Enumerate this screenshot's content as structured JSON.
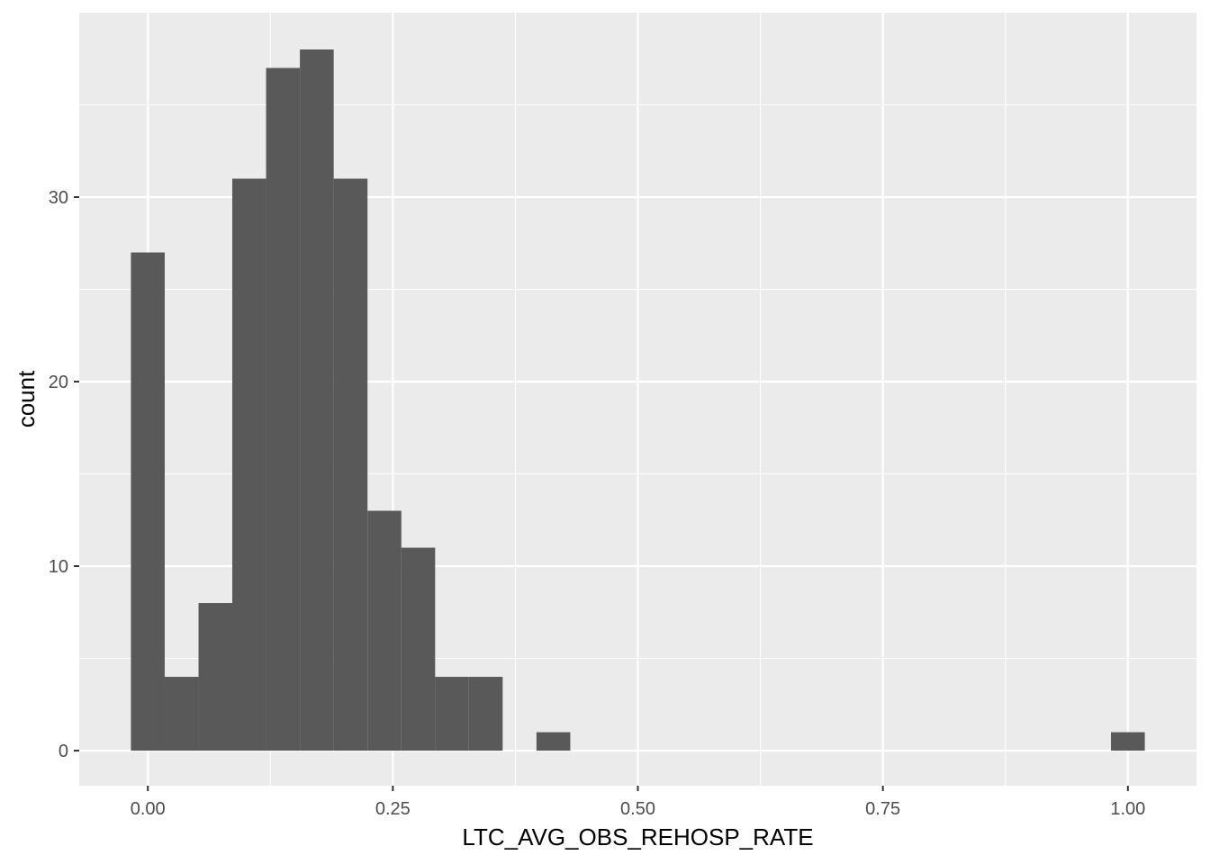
{
  "chart_data": {
    "type": "bar",
    "subtype": "histogram",
    "title": "",
    "xlabel": "LTC_AVG_OBS_REHOSP_RATE",
    "ylabel": "count",
    "xlim": [
      -0.07,
      1.07
    ],
    "ylim": [
      -1.9,
      40
    ],
    "x_ticks": [
      0.0,
      0.25,
      0.5,
      0.75,
      1.0
    ],
    "x_tick_labels": [
      "0.00",
      "0.25",
      "0.50",
      "0.75",
      "1.00"
    ],
    "y_ticks": [
      0,
      10,
      20,
      30
    ],
    "y_tick_labels": [
      "0",
      "10",
      "20",
      "30"
    ],
    "bin_width": 0.0345,
    "bins": [
      {
        "x": 0.0,
        "count": 27
      },
      {
        "x": 0.0345,
        "count": 4
      },
      {
        "x": 0.069,
        "count": 8
      },
      {
        "x": 0.1034,
        "count": 31
      },
      {
        "x": 0.1379,
        "count": 37
      },
      {
        "x": 0.1724,
        "count": 38
      },
      {
        "x": 0.2069,
        "count": 31
      },
      {
        "x": 0.2414,
        "count": 13
      },
      {
        "x": 0.2759,
        "count": 11
      },
      {
        "x": 0.3103,
        "count": 4
      },
      {
        "x": 0.3448,
        "count": 4
      },
      {
        "x": 0.4138,
        "count": 1
      },
      {
        "x": 1.0,
        "count": 1
      }
    ],
    "grid": true,
    "colors": {
      "panel": "#ebebeb",
      "grid_major": "#ffffff",
      "bar_fill": "#595959",
      "tick_text": "#4d4d4d",
      "axis_title": "#000000"
    }
  }
}
